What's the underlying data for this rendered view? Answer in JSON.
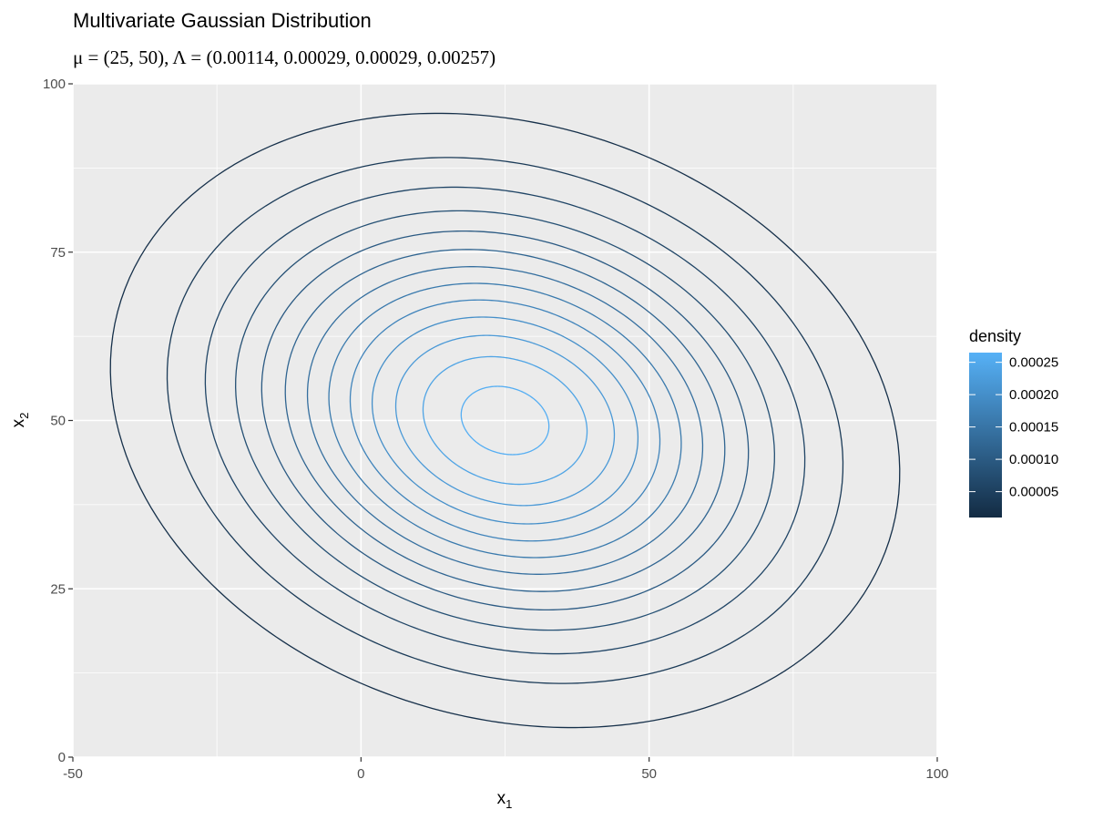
{
  "chart_data": {
    "type": "contour",
    "title": "Multivariate Gaussian Distribution",
    "subtitle": "μ = (25, 50), Λ = (0.00114, 0.00029, 0.00029, 0.00257)",
    "xlabel": {
      "base": "x",
      "sub": "1"
    },
    "ylabel": {
      "base": "x",
      "sub": "2"
    },
    "xlim": [
      -50,
      100
    ],
    "ylim": [
      0,
      100
    ],
    "x_ticks": [
      -50,
      0,
      50,
      100
    ],
    "x_tick_labels": [
      "-50",
      "0",
      "50",
      "100"
    ],
    "y_ticks": [
      0,
      25,
      50,
      75,
      100
    ],
    "y_tick_labels": [
      "0",
      "25",
      "50",
      "75",
      "100"
    ],
    "x_minor": [
      -25,
      25,
      75
    ],
    "y_minor": [
      12.5,
      37.5,
      62.5,
      87.5
    ],
    "grid": true,
    "mean": [
      25,
      50
    ],
    "precision": [
      0.00114,
      0.00029,
      0.00029,
      0.00257
    ],
    "contour_levels": [
      2e-05,
      4e-05,
      6e-05,
      8e-05,
      0.0001,
      0.00012,
      0.00014,
      0.00016,
      0.00018,
      0.0002,
      0.00022,
      0.00024,
      0.00026
    ],
    "legend": {
      "title": "density",
      "position": "right",
      "min": 1e-05,
      "max": 0.000265,
      "low_color": "#132B43",
      "high_color": "#56B1F7",
      "ticks": [
        5e-05,
        0.0001,
        0.00015,
        0.0002,
        0.00025
      ],
      "labels": [
        "0.00005",
        "0.00010",
        "0.00015",
        "0.00020",
        "0.00025"
      ]
    },
    "colors": {
      "panel": "#EBEBEB",
      "grid": "#FFFFFF",
      "tick": "#333333"
    }
  }
}
